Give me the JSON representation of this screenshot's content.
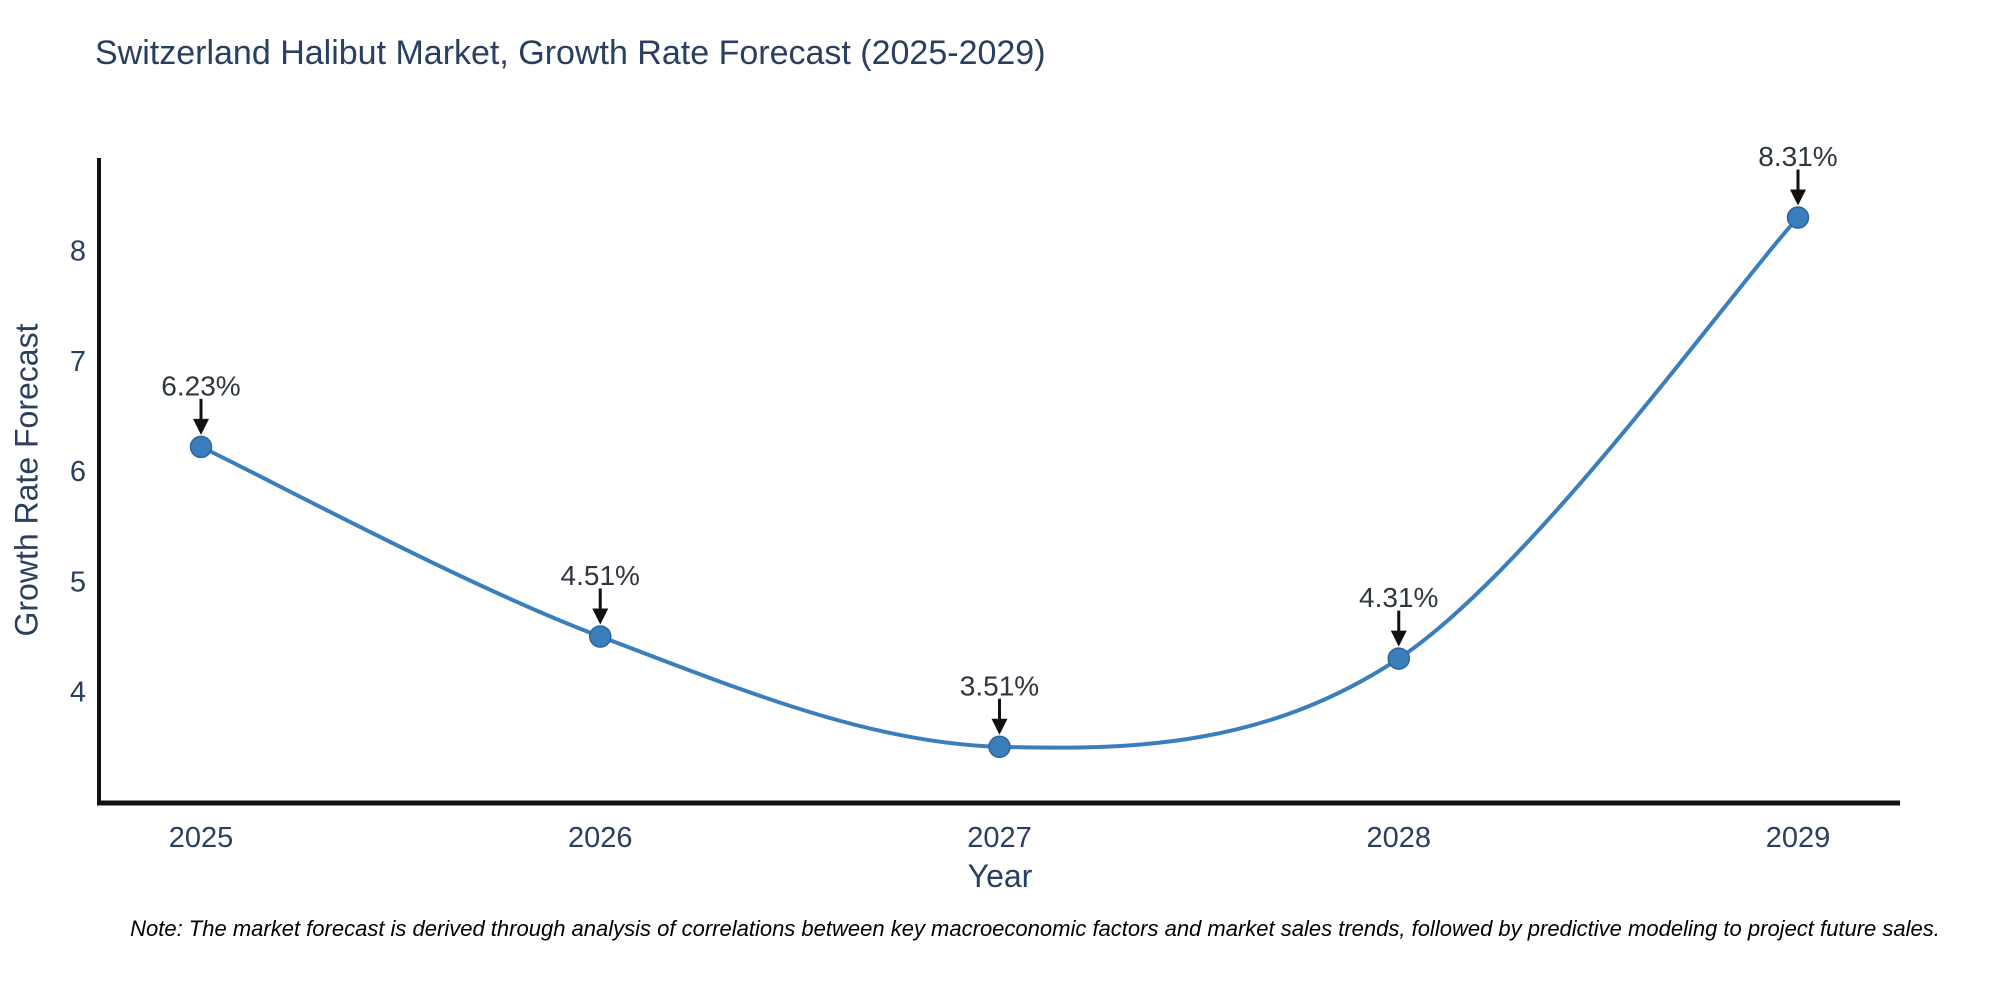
{
  "title": "Switzerland Halibut Market, Growth Rate Forecast (2025-2029)",
  "note": "Note: The market forecast is derived through analysis of correlations between key macroeconomic factors and market sales trends, followed by predictive modeling to project future sales.",
  "chart_data": {
    "type": "line",
    "line_shape": "spline",
    "title": "Switzerland Halibut Market, Growth Rate Forecast (2025-2029)",
    "xlabel": "Year",
    "ylabel": "Growth Rate Forecast",
    "categories": [
      "2025",
      "2026",
      "2027",
      "2028",
      "2029"
    ],
    "series": [
      {
        "name": "Growth Rate Forecast",
        "values": [
          6.23,
          4.51,
          3.51,
          4.31,
          8.31
        ],
        "point_labels": [
          "6.23%",
          "4.51%",
          "3.51%",
          "4.31%",
          "8.31%"
        ]
      }
    ],
    "yticks": [
      "4",
      "5",
      "6",
      "7",
      "8"
    ],
    "ytick_values": [
      4,
      5,
      6,
      7,
      8
    ],
    "ylim": [
      3.0,
      8.85
    ],
    "grid": false,
    "legend": false,
    "annotation_style": "black-arrow-down-to-point",
    "colors": {
      "line": "#3a7ebc",
      "marker": "#3a7ebc",
      "marker_edge": "#2b669c",
      "axis_line": "#111111",
      "tick_text": "#2a3f5f",
      "title_text": "#2a3f5f",
      "annotation_text": "#2f3640",
      "arrow": "#111111",
      "note_text": "#000000",
      "background": "#ffffff"
    }
  }
}
